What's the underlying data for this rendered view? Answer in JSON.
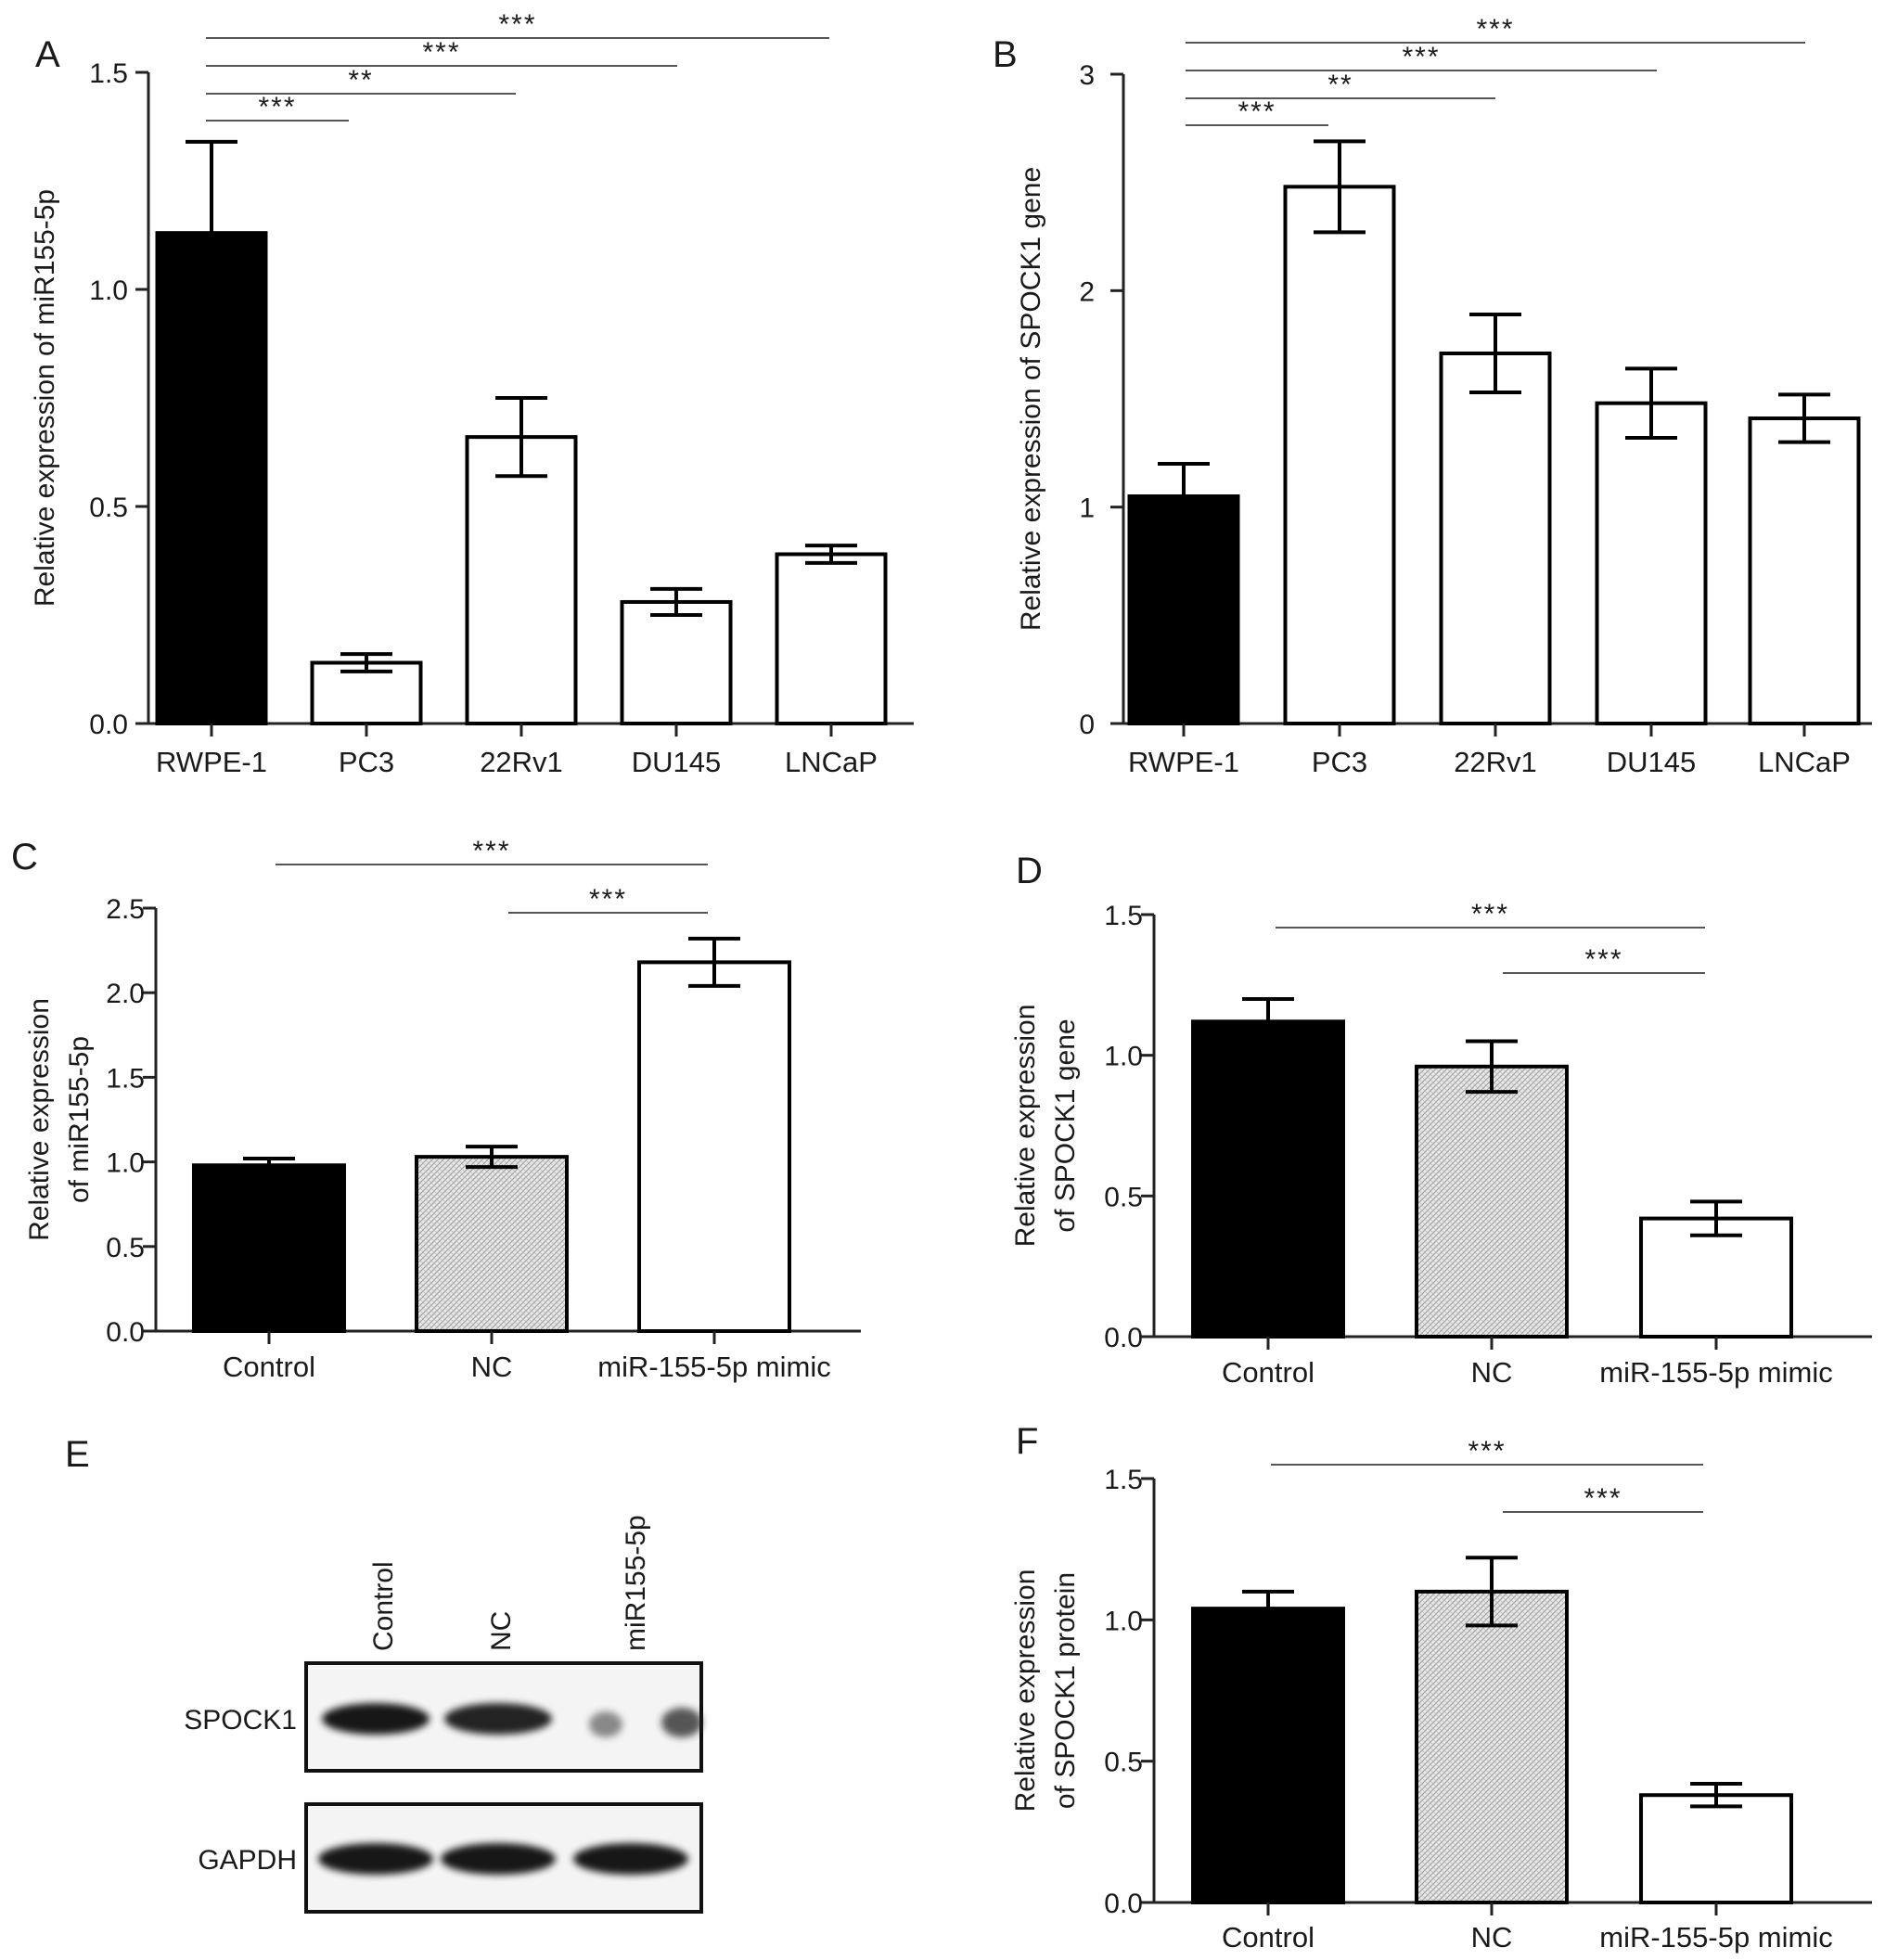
{
  "chart_data": [
    {
      "panel": "A",
      "type": "bar",
      "categories": [
        "RWPE-1",
        "PC3",
        "22Rv1",
        "DU145",
        "LNCaP"
      ],
      "values": [
        1.13,
        0.14,
        0.66,
        0.28,
        0.39
      ],
      "errors": [
        0.21,
        0.02,
        0.09,
        0.03,
        0.02
      ],
      "fills": [
        "black",
        "white",
        "white",
        "white",
        "white"
      ],
      "ylabel": [
        "Relative expression of miR155-5p"
      ],
      "ylim": [
        0,
        1.5
      ],
      "yticks": [
        0,
        0.5,
        1,
        1.5
      ],
      "yticklabels": [
        "0.0",
        "0.5",
        "1.0",
        "1.5"
      ],
      "significance": [
        {
          "from": 0,
          "to": 1,
          "label": "***"
        },
        {
          "from": 0,
          "to": 2,
          "label": "**"
        },
        {
          "from": 0,
          "to": 3,
          "label": "***"
        },
        {
          "from": 0,
          "to": 4,
          "label": "***"
        }
      ]
    },
    {
      "panel": "B",
      "type": "bar",
      "categories": [
        "RWPE-1",
        "PC3",
        "22Rv1",
        "DU145",
        "LNCaP"
      ],
      "values": [
        1.05,
        2.48,
        1.71,
        1.48,
        1.41
      ],
      "errors": [
        0.15,
        0.21,
        0.18,
        0.16,
        0.11
      ],
      "fills": [
        "black",
        "white",
        "white",
        "white",
        "white"
      ],
      "ylabel": [
        "Relative expression of SPOCK1 gene"
      ],
      "ylim": [
        0,
        3
      ],
      "yticks": [
        0,
        1,
        2,
        3
      ],
      "yticklabels": [
        "0",
        "1",
        "2",
        "3"
      ],
      "significance": [
        {
          "from": 0,
          "to": 1,
          "label": "***"
        },
        {
          "from": 0,
          "to": 2,
          "label": "**"
        },
        {
          "from": 0,
          "to": 3,
          "label": "***"
        },
        {
          "from": 0,
          "to": 4,
          "label": "***"
        }
      ]
    },
    {
      "panel": "C",
      "type": "bar",
      "categories": [
        "Control",
        "NC",
        "miR-155-5p mimic"
      ],
      "values": [
        0.98,
        1.03,
        2.18
      ],
      "errors": [
        0.04,
        0.06,
        0.14
      ],
      "fills": [
        "black",
        "hatched",
        "white"
      ],
      "ylabel": [
        "Relative expression",
        "of miR155-5p"
      ],
      "ylim": [
        0,
        2.5
      ],
      "yticks": [
        0,
        0.5,
        1,
        1.5,
        2,
        2.5
      ],
      "yticklabels": [
        "0.0",
        "0.5",
        "1.0",
        "1.5",
        "2.0",
        "2.5"
      ],
      "significance": [
        {
          "from": 0,
          "to": 2,
          "label": "***"
        },
        {
          "from": 1,
          "to": 2,
          "label": "***"
        }
      ]
    },
    {
      "panel": "D",
      "type": "bar",
      "categories": [
        "Control",
        "NC",
        "miR-155-5p mimic"
      ],
      "values": [
        1.12,
        0.96,
        0.42
      ],
      "errors": [
        0.08,
        0.09,
        0.06
      ],
      "fills": [
        "black",
        "hatched",
        "white"
      ],
      "ylabel": [
        "Relative expression",
        "of SPOCK1 gene"
      ],
      "ylim": [
        0,
        1.5
      ],
      "yticks": [
        0,
        0.5,
        1,
        1.5
      ],
      "yticklabels": [
        "0.0",
        "0.5",
        "1.0",
        "1.5"
      ],
      "significance": [
        {
          "from": 0,
          "to": 2,
          "label": "***"
        },
        {
          "from": 1,
          "to": 2,
          "label": "***"
        }
      ]
    },
    {
      "panel": "F",
      "type": "bar",
      "categories": [
        "Control",
        "NC",
        "miR-155-5p mimic"
      ],
      "values": [
        1.04,
        1.1,
        0.38
      ],
      "errors": [
        0.06,
        0.12,
        0.04
      ],
      "fills": [
        "black",
        "hatched",
        "white"
      ],
      "ylabel": [
        "Relative expression",
        "of SPOCK1 protein"
      ],
      "ylim": [
        0,
        1.5
      ],
      "yticks": [
        0,
        0.5,
        1,
        1.5
      ],
      "yticklabels": [
        "0.0",
        "0.5",
        "1.0",
        "1.5"
      ],
      "significance": [
        {
          "from": 0,
          "to": 2,
          "label": "***"
        },
        {
          "from": 1,
          "to": 2,
          "label": "***"
        }
      ]
    }
  ],
  "western_blot": {
    "panel": "E",
    "lanes": [
      "Control",
      "NC",
      "miR155-5p"
    ],
    "rows": [
      {
        "label": "SPOCK1",
        "intensity": [
          1.0,
          0.95,
          0.35
        ]
      },
      {
        "label": "GAPDH",
        "intensity": [
          1.0,
          1.0,
          1.0
        ]
      }
    ]
  }
}
